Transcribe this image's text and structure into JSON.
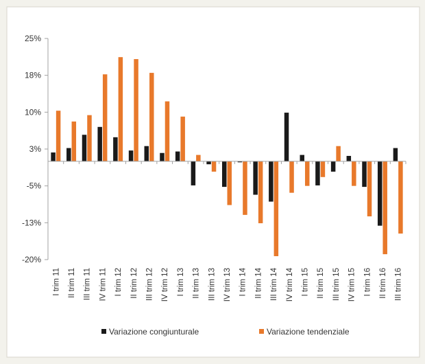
{
  "chart_data": {
    "type": "bar",
    "categories": [
      "I trim 11",
      "II trim 11",
      "III trim 11",
      "IV trim 11",
      "I trim 12",
      "II trim 12",
      "III trim 12",
      "IV trim 12",
      "I trim 13",
      "II trim 13",
      "III trim 13",
      "IV trim 13",
      "I trim 14",
      "II trim 14",
      "III trim 14",
      "IV trim 14",
      "I trim 15",
      "II trim 15",
      "III trim 15",
      "IV trim 15",
      "I trim 16",
      "II trim 16",
      "III trim 16"
    ],
    "series": [
      {
        "name": "Variazione congiunturale",
        "color": "#1a1a1a",
        "values": [
          1.8,
          2.7,
          5.4,
          7.0,
          4.9,
          2.2,
          3.1,
          1.7,
          2.0,
          -4.9,
          -0.6,
          -5.2,
          -0.2,
          -6.8,
          -8.2,
          9.9,
          1.3,
          -4.9,
          -2.1,
          1.1,
          -5.2,
          -13.1,
          2.7
        ]
      },
      {
        "name": "Variazione tendenziale",
        "color": "#e8792b",
        "values": [
          10.3,
          8.1,
          9.4,
          17.7,
          21.2,
          20.8,
          18.0,
          12.2,
          9.1,
          1.3,
          -2.1,
          -8.9,
          -10.9,
          -12.6,
          -19.3,
          -6.4,
          -5.0,
          -3.2,
          3.1,
          -5.0,
          -11.2,
          -18.9,
          -14.7
        ]
      }
    ],
    "ylim": [
      -20,
      25
    ],
    "yticks": [
      {
        "value": 25,
        "label": "25%"
      },
      {
        "value": 17.5,
        "label": "18%"
      },
      {
        "value": 10,
        "label": "10%"
      },
      {
        "value": 2.5,
        "label": "3%"
      },
      {
        "value": -5,
        "label": "-5%"
      },
      {
        "value": -12.5,
        "label": "-13%"
      },
      {
        "value": -20,
        "label": "-20%"
      }
    ],
    "legend": "bottom"
  }
}
